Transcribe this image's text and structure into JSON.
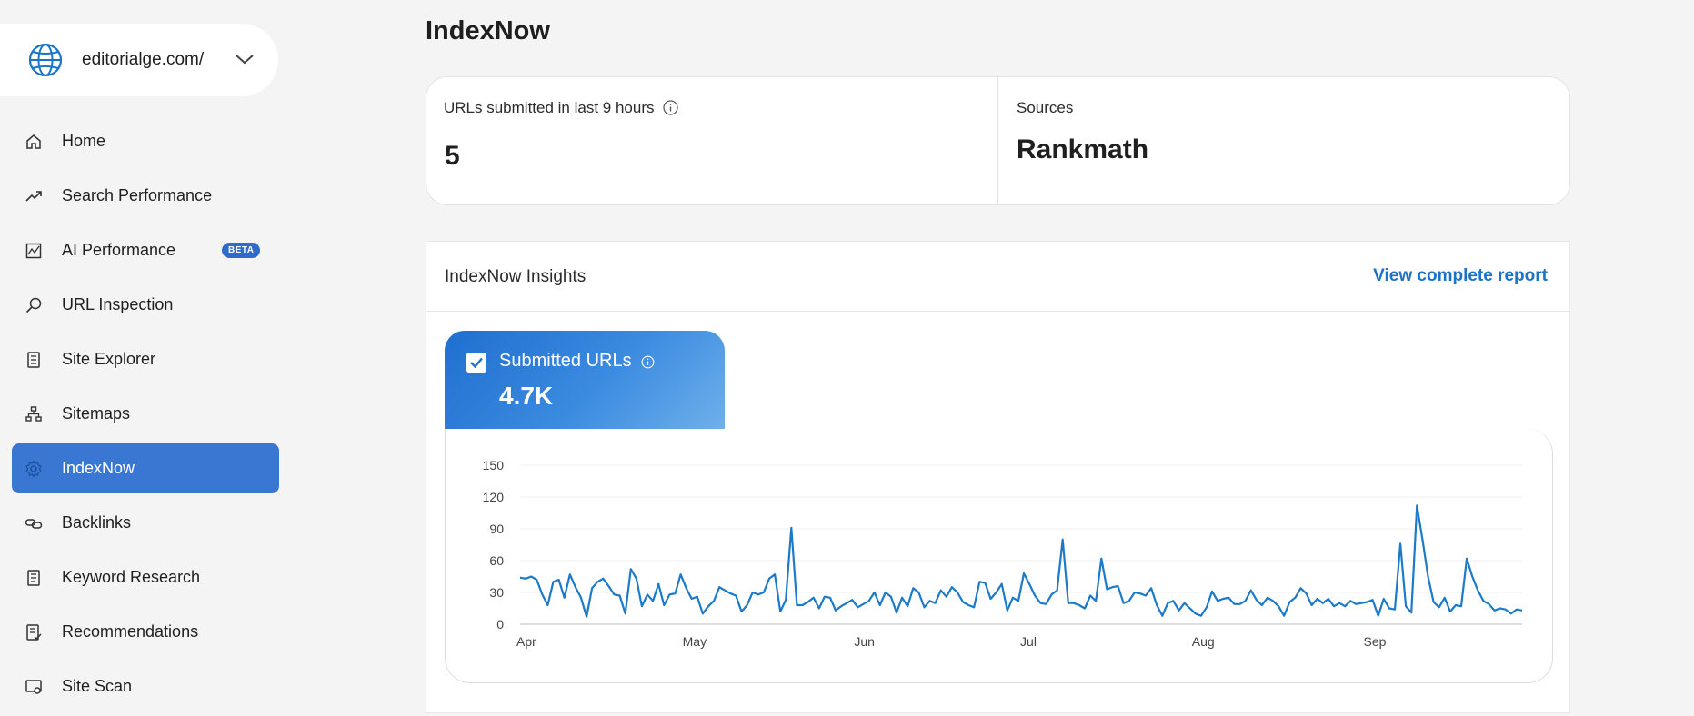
{
  "site": {
    "name": "editorialge.com/"
  },
  "nav": {
    "items": [
      {
        "key": "home",
        "label": "Home",
        "icon": "home-icon"
      },
      {
        "key": "search-performance",
        "label": "Search Performance",
        "icon": "trend-up-icon"
      },
      {
        "key": "ai-performance",
        "label": "AI Performance",
        "icon": "chart-image-icon",
        "badge": "BETA"
      },
      {
        "key": "url-inspection",
        "label": "URL Inspection",
        "icon": "magnifier-icon"
      },
      {
        "key": "site-explorer",
        "label": "Site Explorer",
        "icon": "document-list-icon"
      },
      {
        "key": "sitemaps",
        "label": "Sitemaps",
        "icon": "sitemap-icon"
      },
      {
        "key": "indexnow",
        "label": "IndexNow",
        "icon": "gear-icon",
        "active": true
      },
      {
        "key": "backlinks",
        "label": "Backlinks",
        "icon": "link-icon"
      },
      {
        "key": "keyword-research",
        "label": "Keyword Research",
        "icon": "document-icon"
      },
      {
        "key": "recommendations",
        "label": "Recommendations",
        "icon": "document-checklist-icon"
      },
      {
        "key": "site-scan",
        "label": "Site Scan",
        "icon": "scan-icon"
      }
    ]
  },
  "page": {
    "title": "IndexNow"
  },
  "stats": {
    "submitted": {
      "label": "URLs submitted in last 9 hours",
      "value": "5"
    },
    "sources": {
      "label": "Sources",
      "value": "Rankmath"
    }
  },
  "insights": {
    "title": "IndexNow Insights",
    "view_report": "View complete report",
    "metric": {
      "label": "Submitted URLs",
      "value": "4.7K",
      "checked": true
    }
  },
  "colors": {
    "accent": "#1a73c7",
    "active_nav": "#3a77d3",
    "series": "#1d7ac8"
  },
  "chart_data": {
    "type": "line",
    "y_ticks": [
      0,
      30,
      60,
      90,
      120,
      150
    ],
    "ylim": [
      0,
      150
    ],
    "x_tick_labels": [
      "Apr",
      "May",
      "Jun",
      "Jul",
      "Aug",
      "Sep"
    ],
    "x_tick_indices": [
      0,
      30,
      61,
      91,
      122,
      153
    ],
    "legend": "none",
    "grid": true,
    "series": [
      {
        "values": [
          44,
          43,
          45,
          42,
          28,
          18,
          40,
          42,
          25,
          47,
          35,
          25,
          7,
          34,
          40,
          43,
          36,
          28,
          27,
          10,
          52,
          43,
          17,
          28,
          22,
          38,
          18,
          28,
          29,
          47,
          34,
          24,
          26,
          10,
          17,
          22,
          35,
          32,
          29,
          27,
          12,
          18,
          30,
          28,
          30,
          43,
          47,
          12,
          23,
          91,
          18,
          18,
          21,
          25,
          15,
          26,
          25,
          13,
          17,
          20,
          23,
          16,
          19,
          22,
          30,
          18,
          30,
          26,
          11,
          25,
          17,
          34,
          30,
          16,
          22,
          20,
          32,
          26,
          35,
          30,
          21,
          18,
          16,
          40,
          39,
          24,
          30,
          38,
          13,
          25,
          22,
          48,
          38,
          27,
          20,
          19,
          28,
          32,
          80,
          20,
          20,
          18,
          15,
          27,
          22,
          62,
          33,
          35,
          36,
          20,
          22,
          30,
          29,
          27,
          34,
          18,
          8,
          20,
          22,
          13,
          20,
          15,
          10,
          8,
          16,
          31,
          22,
          24,
          25,
          19,
          19,
          22,
          32,
          23,
          18,
          25,
          22,
          17,
          8,
          21,
          25,
          34,
          29,
          18,
          24,
          20,
          24,
          17,
          20,
          17,
          22,
          19,
          20,
          21,
          23,
          8,
          24,
          15,
          14,
          76,
          17,
          11,
          112,
          80,
          45,
          21,
          16,
          25,
          12,
          18,
          17,
          62,
          45,
          32,
          22,
          19,
          13,
          15,
          14,
          10,
          14,
          13
        ]
      }
    ]
  }
}
